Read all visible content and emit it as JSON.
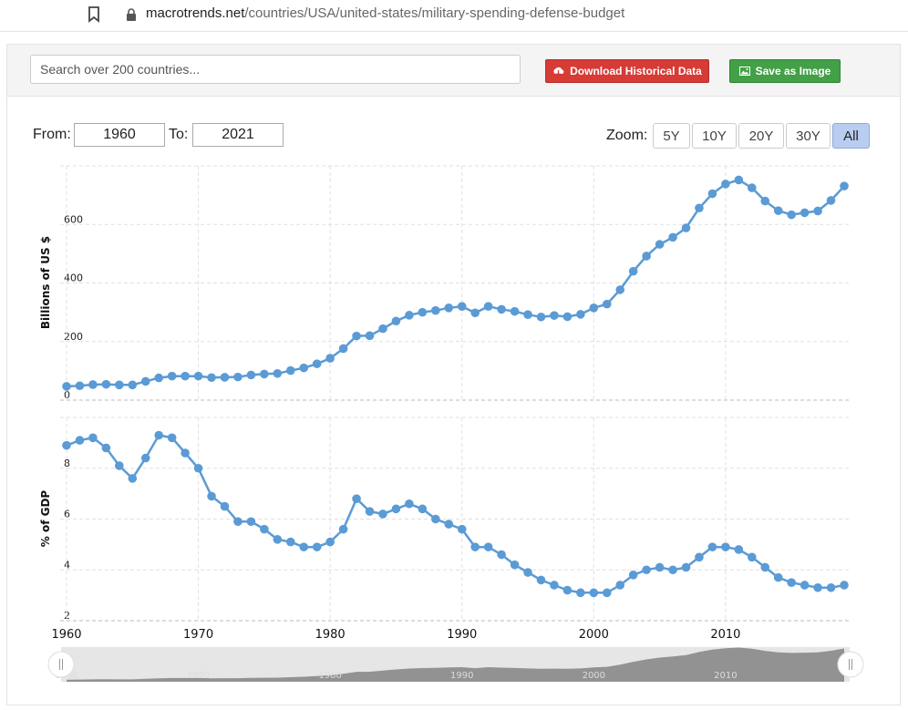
{
  "browser": {
    "url_domain": "macrotrends.net",
    "url_path": "/countries/USA/united-states/military-spending-defense-budget"
  },
  "toolbar": {
    "search_placeholder": "Search over 200 countries...",
    "download_label": "Download Historical Data",
    "save_label": "Save as Image"
  },
  "range": {
    "from_label": "From:",
    "from_value": "1960",
    "to_label": "To:",
    "to_value": "2021"
  },
  "zoom": {
    "label": "Zoom:",
    "options": [
      "5Y",
      "10Y",
      "20Y",
      "30Y",
      "All"
    ],
    "active": "All"
  },
  "colors": {
    "series": "#5b9bd5",
    "navigator_fill": "#888888",
    "download_button": "#d63b36",
    "save_button": "#43a047"
  },
  "chart_data": [
    {
      "type": "line",
      "ylabel": "Billions of US $",
      "yticks": [
        0,
        200,
        400,
        600
      ],
      "ylim": [
        0,
        800
      ],
      "xlim": [
        1960,
        2019
      ],
      "xticks": [
        1960,
        1970,
        1980,
        1990,
        2000,
        2010
      ],
      "grid": true,
      "x": [
        1960,
        1961,
        1962,
        1963,
        1964,
        1965,
        1966,
        1967,
        1968,
        1969,
        1970,
        1971,
        1972,
        1973,
        1974,
        1975,
        1976,
        1977,
        1978,
        1979,
        1980,
        1981,
        1982,
        1983,
        1984,
        1985,
        1986,
        1987,
        1988,
        1989,
        1990,
        1991,
        1992,
        1993,
        1994,
        1995,
        1996,
        1997,
        1998,
        1999,
        2000,
        2001,
        2002,
        2003,
        2004,
        2005,
        2006,
        2007,
        2008,
        2009,
        2010,
        2011,
        2012,
        2013,
        2014,
        2015,
        2016,
        2017,
        2018,
        2019
      ],
      "series": [
        {
          "values": [
            47,
            49,
            53,
            54,
            52,
            52,
            64,
            76,
            82,
            82,
            82,
            77,
            78,
            79,
            86,
            89,
            91,
            101,
            110,
            124,
            143,
            176,
            219,
            220,
            244,
            270,
            290,
            300,
            306,
            315,
            320,
            298,
            320,
            310,
            303,
            292,
            284,
            289,
            285,
            293,
            315,
            328,
            377,
            440,
            492,
            532,
            556,
            588,
            656,
            705,
            738,
            752,
            725,
            680,
            647,
            633,
            640,
            646,
            682,
            731
          ]
        }
      ]
    },
    {
      "type": "line",
      "ylabel": "% of GDP",
      "yticks": [
        2,
        4,
        6,
        8
      ],
      "ylim": [
        2,
        10
      ],
      "xlim": [
        1960,
        2019
      ],
      "xticks": [
        1960,
        1970,
        1980,
        1990,
        2000,
        2010
      ],
      "grid": true,
      "x": [
        1960,
        1961,
        1962,
        1963,
        1964,
        1965,
        1966,
        1967,
        1968,
        1969,
        1970,
        1971,
        1972,
        1973,
        1974,
        1975,
        1976,
        1977,
        1978,
        1979,
        1980,
        1981,
        1982,
        1983,
        1984,
        1985,
        1986,
        1987,
        1988,
        1989,
        1990,
        1991,
        1992,
        1993,
        1994,
        1995,
        1996,
        1997,
        1998,
        1999,
        2000,
        2001,
        2002,
        2003,
        2004,
        2005,
        2006,
        2007,
        2008,
        2009,
        2010,
        2011,
        2012,
        2013,
        2014,
        2015,
        2016,
        2017,
        2018,
        2019
      ],
      "series": [
        {
          "values": [
            8.9,
            9.1,
            9.2,
            8.8,
            8.1,
            7.6,
            8.4,
            9.3,
            9.2,
            8.6,
            8.0,
            6.9,
            6.5,
            5.9,
            5.9,
            5.6,
            5.2,
            5.1,
            4.9,
            4.9,
            5.1,
            5.6,
            6.8,
            6.3,
            6.2,
            6.4,
            6.6,
            6.4,
            6.0,
            5.8,
            5.6,
            4.9,
            4.9,
            4.6,
            4.2,
            3.9,
            3.6,
            3.4,
            3.2,
            3.1,
            3.1,
            3.1,
            3.4,
            3.8,
            4.0,
            4.1,
            4.0,
            4.1,
            4.5,
            4.9,
            4.9,
            4.8,
            4.5,
            4.1,
            3.7,
            3.5,
            3.4,
            3.3,
            3.3,
            3.4
          ]
        }
      ]
    }
  ],
  "navigator": {
    "xticks": [
      1960,
      1970,
      1980,
      1990,
      2000,
      2010
    ]
  }
}
